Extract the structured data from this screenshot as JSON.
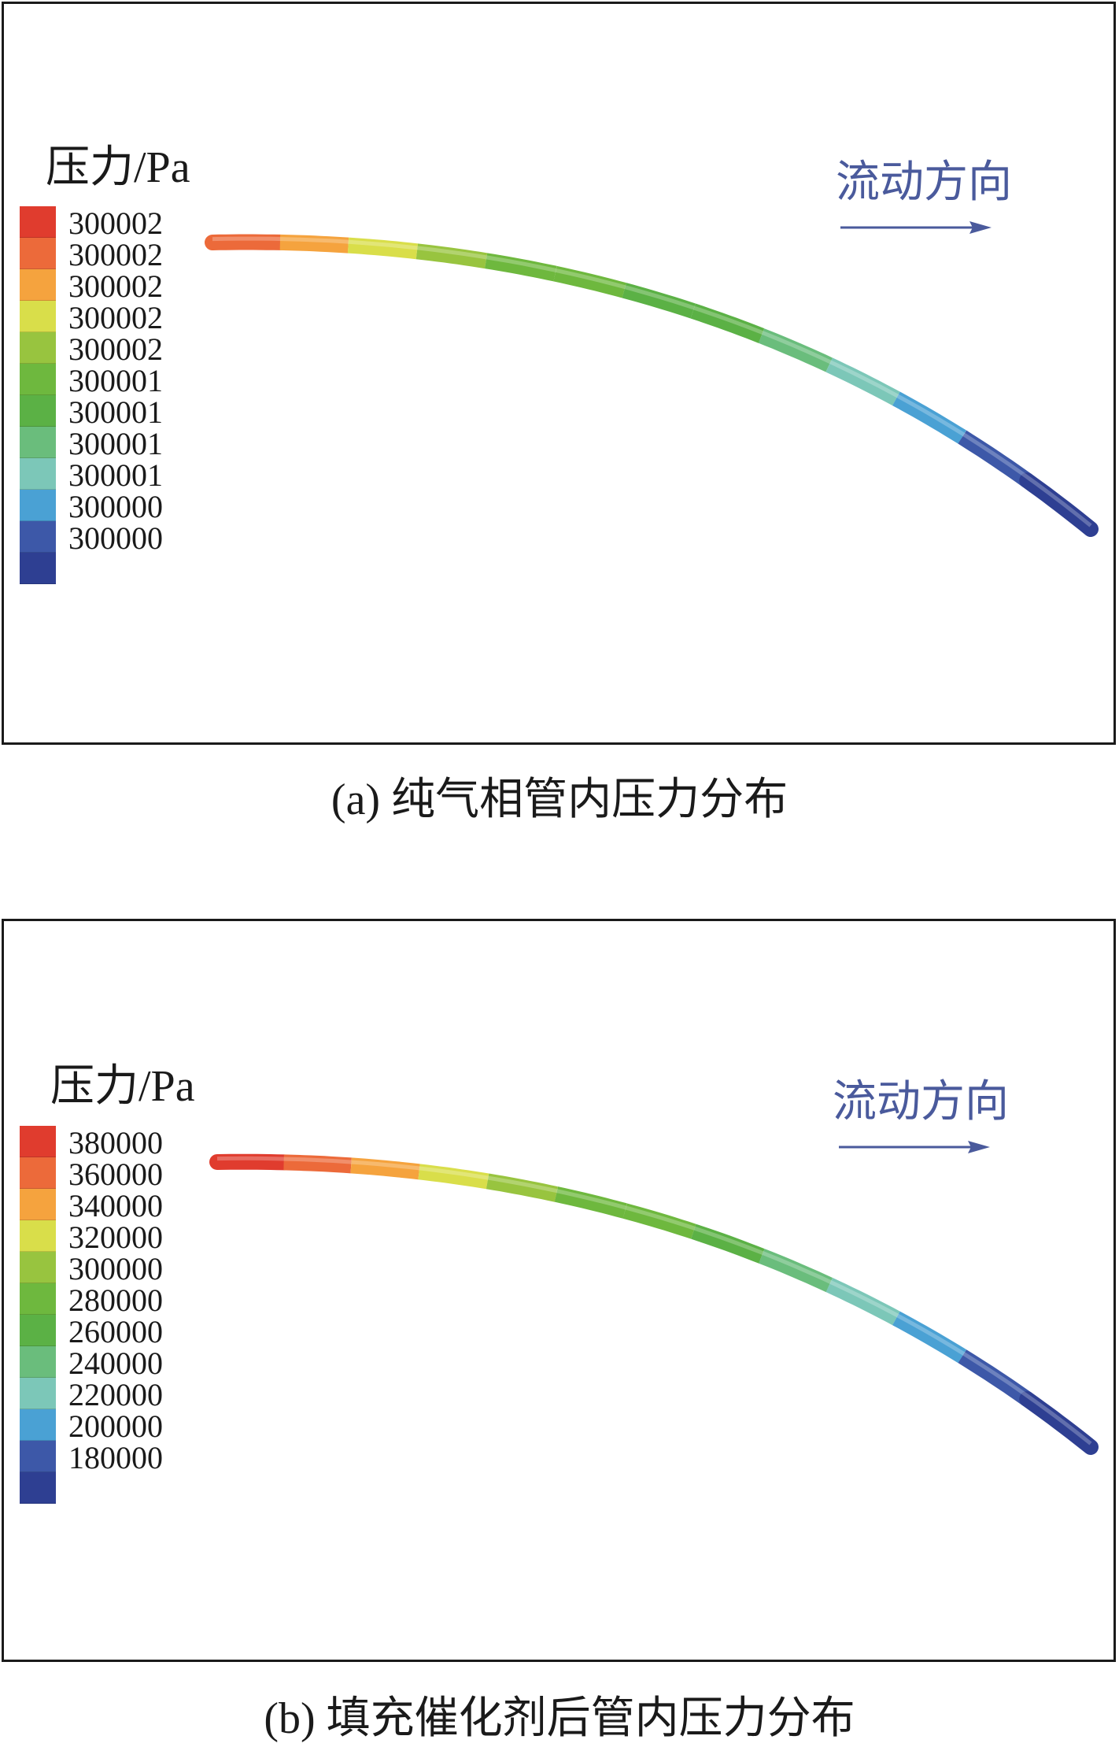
{
  "panels": [
    {
      "caption": "(a) 纯气相管内压力分布",
      "legend_title": "压力/Pa",
      "flow_label": "流动方向",
      "legend": [
        {
          "label": "300002",
          "color": "#e03c2e"
        },
        {
          "label": "300002",
          "color": "#ec6a3a"
        },
        {
          "label": "300002",
          "color": "#f5a33e"
        },
        {
          "label": "300002",
          "color": "#d9de4a"
        },
        {
          "label": "300002",
          "color": "#98c43f"
        },
        {
          "label": "300001",
          "color": "#6eb83e"
        },
        {
          "label": "300001",
          "color": "#5bb145"
        },
        {
          "label": "300001",
          "color": "#6abd7c"
        },
        {
          "label": "300001",
          "color": "#7cc7b8"
        },
        {
          "label": "300000",
          "color": "#4aa1d4"
        },
        {
          "label": "300000",
          "color": "#3d58a8"
        },
        {
          "label": "",
          "color": "#2e3f92"
        }
      ]
    },
    {
      "caption": "(b) 填充催化剂后管内压力分布",
      "legend_title": "压力/Pa",
      "flow_label": "流动方向",
      "legend": [
        {
          "label": "380000",
          "color": "#e03c2e"
        },
        {
          "label": "360000",
          "color": "#ec6a3a"
        },
        {
          "label": "340000",
          "color": "#f5a33e"
        },
        {
          "label": "320000",
          "color": "#d9de4a"
        },
        {
          "label": "300000",
          "color": "#98c43f"
        },
        {
          "label": "280000",
          "color": "#6eb83e"
        },
        {
          "label": "260000",
          "color": "#5bb145"
        },
        {
          "label": "240000",
          "color": "#6abd7c"
        },
        {
          "label": "220000",
          "color": "#7cc7b8"
        },
        {
          "label": "200000",
          "color": "#4aa1d4"
        },
        {
          "label": "180000",
          "color": "#3d58a8"
        },
        {
          "label": "",
          "color": "#2e3f92"
        }
      ]
    }
  ]
}
